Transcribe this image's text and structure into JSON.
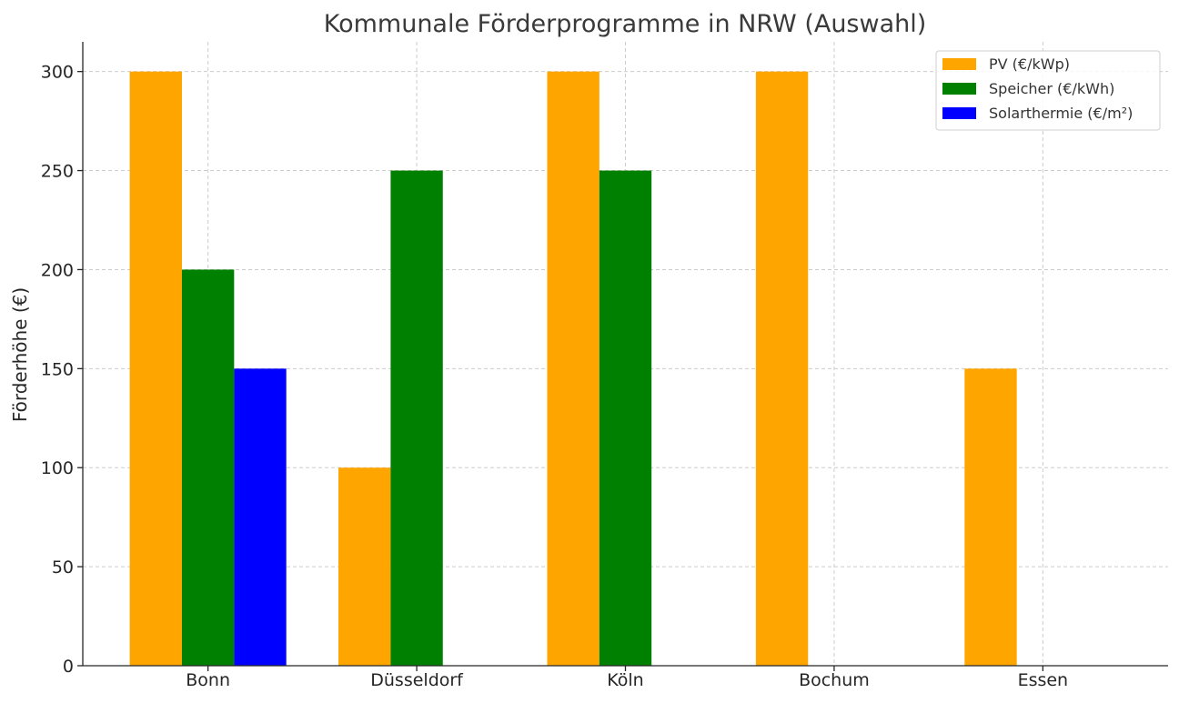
{
  "chart_data": {
    "type": "bar",
    "title": "Kommunale Förderprogramme in NRW (Auswahl)",
    "xlabel": "",
    "ylabel": "Förderhöhe (€)",
    "categories": [
      "Bonn",
      "Düsseldorf",
      "Köln",
      "Bochum",
      "Essen"
    ],
    "series": [
      {
        "name": "PV (€/kWp)",
        "color": "#FFA500",
        "values": [
          300,
          100,
          300,
          300,
          150
        ]
      },
      {
        "name": "Speicher (€/kWh)",
        "color": "#008000",
        "values": [
          200,
          250,
          250,
          0,
          0
        ]
      },
      {
        "name": "Solarthermie (€/m²)",
        "color": "#0000FF",
        "values": [
          150,
          0,
          0,
          0,
          0
        ]
      }
    ],
    "ylim": [
      0,
      315
    ],
    "yticks": [
      0,
      50,
      100,
      150,
      200,
      250,
      300
    ],
    "grid": true,
    "legend_position": "top-right"
  }
}
